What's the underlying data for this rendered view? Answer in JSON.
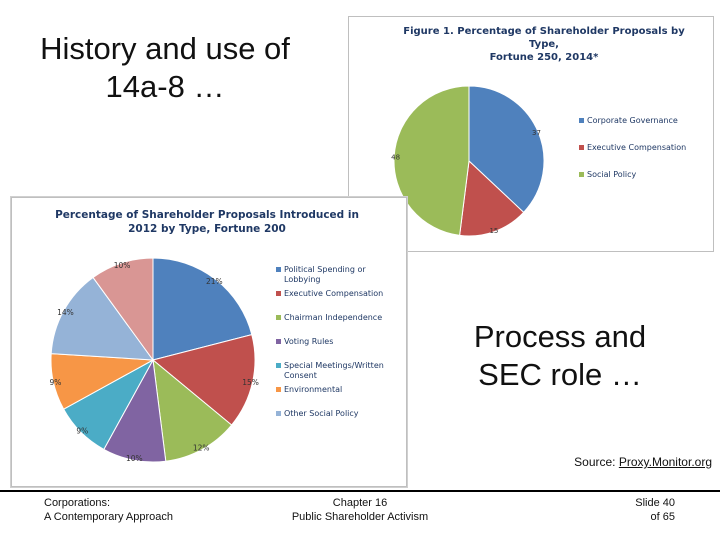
{
  "slide": {
    "title_left": "History and use of 14a-8 …",
    "title_right": "Process and SEC role …",
    "source_prefix": "Source: ",
    "source_link": "Proxy.Monitor.org"
  },
  "footer": {
    "left_line1": "Corporations:",
    "left_line2": "A Contemporary Approach",
    "center_line1": "Chapter 16",
    "center_line2": "Public Shareholder Activism",
    "right_line1": "Slide 40",
    "right_line2": "of 65"
  },
  "chart_data": [
    {
      "type": "pie",
      "title": "Figure 1. Percentage of Shareholder Proposals by Type, Fortune 250, 2014*",
      "title_line1": "Figure 1. Percentage of Shareholder Proposals by Type,",
      "title_line2": "Fortune 250, 2014*",
      "legend_position": "right",
      "series": [
        {
          "name": "Corporate Governance",
          "value": 37,
          "label": "37",
          "color": "#4f81bd"
        },
        {
          "name": "Executive Compensation",
          "value": 15,
          "label": "15",
          "color": "#c0504d"
        },
        {
          "name": "Social Policy",
          "value": 48,
          "label": "48",
          "color": "#9bbb59"
        }
      ]
    },
    {
      "type": "pie",
      "title": "Percentage of Shareholder Proposals Introduced in 2012 by Type, Fortune 200",
      "title_line1": "Percentage of Shareholder Proposals Introduced in",
      "title_line2": "2012 by Type, Fortune 200",
      "legend_position": "right",
      "series": [
        {
          "name": "Political Spending or Lobbying",
          "value": 21,
          "label": "21%",
          "color": "#4f81bd"
        },
        {
          "name": "Executive Compensation",
          "value": 15,
          "label": "15%",
          "color": "#c0504d"
        },
        {
          "name": "Chairman Independence",
          "value": 12,
          "label": "12%",
          "color": "#9bbb59"
        },
        {
          "name": "Voting Rules",
          "value": 10,
          "label": "10%",
          "color": "#8064a2"
        },
        {
          "name": "Special Meetings/Written Consent",
          "value": 9,
          "label": "9%",
          "color": "#4bacc6"
        },
        {
          "name": "Environmental",
          "value": 9,
          "label": "9%",
          "color": "#f79646"
        },
        {
          "name": "Other Social Policy",
          "value": 14,
          "label": "14%",
          "color": "#95b3d7"
        },
        {
          "name": "",
          "value": 10,
          "label": "10%",
          "color": "#d99694"
        }
      ]
    }
  ]
}
